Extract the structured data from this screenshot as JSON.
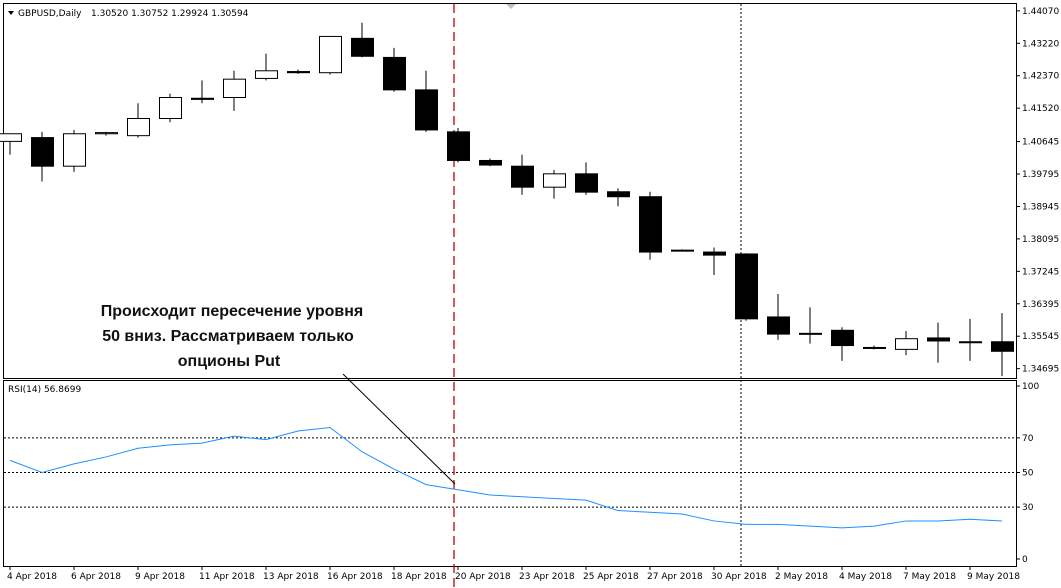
{
  "header": {
    "symbol_label": "GBPUSD,Daily",
    "ohlc_label": "1.30520 1.30752 1.29924 1.30594"
  },
  "annotation": {
    "lines": [
      "Происходит пересечение уровня",
      "50 вниз. Рассматриваем только",
      "опционы Put"
    ]
  },
  "rsi_header": "RSI(14) 56.8699",
  "colors": {
    "bull_fill": "#ffffff",
    "bear_fill": "#000000",
    "rsi_line": "#1e90ff",
    "red_marker": "#c00000"
  },
  "chart_data": [
    {
      "type": "candlestick",
      "title": "GBPUSD,Daily",
      "ylim": [
        1.3445,
        1.4425
      ],
      "yticks": [
        "1.44070",
        "1.43220",
        "1.42370",
        "1.41520",
        "1.40645",
        "1.39795",
        "1.38945",
        "1.38095",
        "1.37245",
        "1.36395",
        "1.35545",
        "1.34695"
      ],
      "candles": [
        {
          "o": 1.4065,
          "h": 1.4085,
          "l": 1.403,
          "c": 1.4085
        },
        {
          "o": 1.4075,
          "h": 1.409,
          "l": 1.396,
          "c": 1.4
        },
        {
          "o": 1.4,
          "h": 1.4095,
          "l": 1.3985,
          "c": 1.4085
        },
        {
          "o": 1.4085,
          "h": 1.409,
          "l": 1.408,
          "c": 1.4088
        },
        {
          "o": 1.408,
          "h": 1.4165,
          "l": 1.4075,
          "c": 1.4125
        },
        {
          "o": 1.4125,
          "h": 1.419,
          "l": 1.4115,
          "c": 1.418
        },
        {
          "o": 1.4178,
          "h": 1.4225,
          "l": 1.4165,
          "c": 1.4175
        },
        {
          "o": 1.418,
          "h": 1.425,
          "l": 1.4145,
          "c": 1.4228
        },
        {
          "o": 1.423,
          "h": 1.4295,
          "l": 1.4225,
          "c": 1.425
        },
        {
          "o": 1.4248,
          "h": 1.4253,
          "l": 1.4242,
          "c": 1.4245
        },
        {
          "o": 1.4245,
          "h": 1.434,
          "l": 1.424,
          "c": 1.434
        },
        {
          "o": 1.4335,
          "h": 1.4376,
          "l": 1.4285,
          "c": 1.4288
        },
        {
          "o": 1.4285,
          "h": 1.431,
          "l": 1.4195,
          "c": 1.42
        },
        {
          "o": 1.42,
          "h": 1.425,
          "l": 1.409,
          "c": 1.4095
        },
        {
          "o": 1.409,
          "h": 1.41,
          "l": 1.401,
          "c": 1.4015
        },
        {
          "o": 1.4015,
          "h": 1.402,
          "l": 1.4,
          "c": 1.4003
        },
        {
          "o": 1.4,
          "h": 1.403,
          "l": 1.3925,
          "c": 1.3945
        },
        {
          "o": 1.3945,
          "h": 1.399,
          "l": 1.3915,
          "c": 1.398
        },
        {
          "o": 1.398,
          "h": 1.401,
          "l": 1.3925,
          "c": 1.3932
        },
        {
          "o": 1.3933,
          "h": 1.3942,
          "l": 1.3895,
          "c": 1.392
        },
        {
          "o": 1.392,
          "h": 1.3933,
          "l": 1.3755,
          "c": 1.3775
        },
        {
          "o": 1.378,
          "h": 1.3782,
          "l": 1.3777,
          "c": 1.378
        },
        {
          "o": 1.3775,
          "h": 1.3787,
          "l": 1.3715,
          "c": 1.3767
        },
        {
          "o": 1.377,
          "h": 1.3772,
          "l": 1.3595,
          "c": 1.36
        },
        {
          "o": 1.3605,
          "h": 1.3665,
          "l": 1.3545,
          "c": 1.356
        },
        {
          "o": 1.356,
          "h": 1.363,
          "l": 1.3535,
          "c": 1.3562
        },
        {
          "o": 1.357,
          "h": 1.3578,
          "l": 1.349,
          "c": 1.353
        },
        {
          "o": 1.3525,
          "h": 1.353,
          "l": 1.352,
          "c": 1.3525
        },
        {
          "o": 1.352,
          "h": 1.3568,
          "l": 1.3505,
          "c": 1.3548
        },
        {
          "o": 1.355,
          "h": 1.359,
          "l": 1.3485,
          "c": 1.3542
        },
        {
          "o": 1.354,
          "h": 1.36,
          "l": 1.349,
          "c": 1.354
        },
        {
          "o": 1.354,
          "h": 1.3615,
          "l": 1.345,
          "c": 1.3515
        }
      ]
    },
    {
      "type": "line",
      "title": "RSI(14) 56.8699",
      "ylim": [
        0,
        100
      ],
      "yticks": [
        "100",
        "70",
        "50",
        "30",
        "0"
      ],
      "levels": [
        70,
        50,
        30
      ],
      "series": [
        {
          "values": [
            57,
            50,
            55,
            59,
            64,
            66,
            67,
            71,
            69,
            74,
            76,
            62,
            52,
            43,
            40,
            37,
            36,
            35,
            34,
            28,
            27,
            26,
            22,
            20,
            20,
            19,
            18,
            19,
            22,
            22,
            23,
            22
          ]
        }
      ]
    }
  ],
  "x_axis": {
    "labels": [
      "4 Apr 2018",
      "6 Apr 2018",
      "9 Apr 2018",
      "11 Apr 2018",
      "13 Apr 2018",
      "16 Apr 2018",
      "18 Apr 2018",
      "20 Apr 2018",
      "23 Apr 2018",
      "25 Apr 2018",
      "27 Apr 2018",
      "30 Apr 2018",
      "2 May 2018",
      "4 May 2018",
      "7 May 2018",
      "9 May 2018"
    ]
  }
}
